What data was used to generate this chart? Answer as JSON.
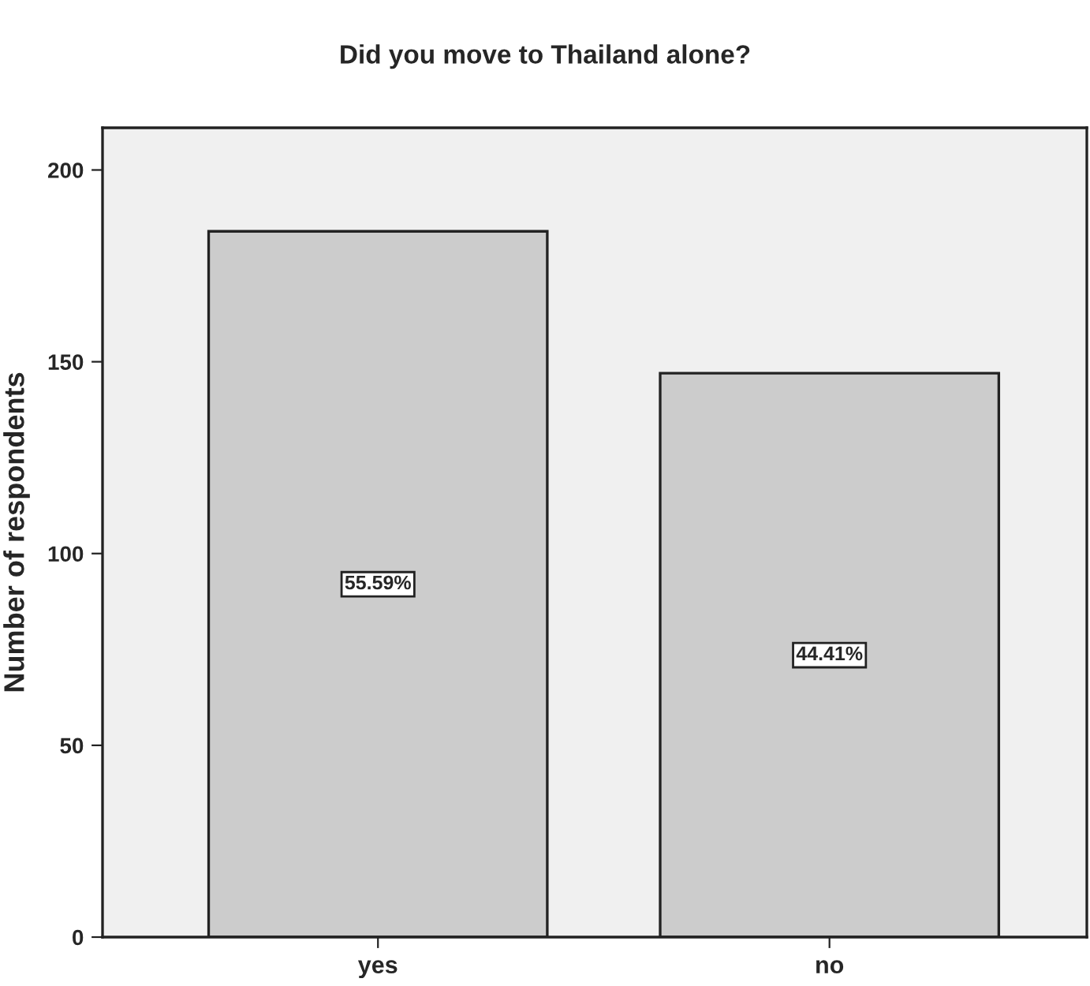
{
  "chart_data": {
    "type": "bar",
    "title": "Did you move to Thailand alone?",
    "ylabel": "Number of respondents",
    "categories": [
      "yes",
      "no"
    ],
    "values": [
      184,
      147
    ],
    "color": "#cccccc",
    "annotations": [
      "55.59%",
      "44.41%"
    ],
    "ylim": [
      0,
      211
    ],
    "yticks": [
      0,
      50,
      100,
      150,
      200
    ],
    "grid": false,
    "legend": false
  }
}
